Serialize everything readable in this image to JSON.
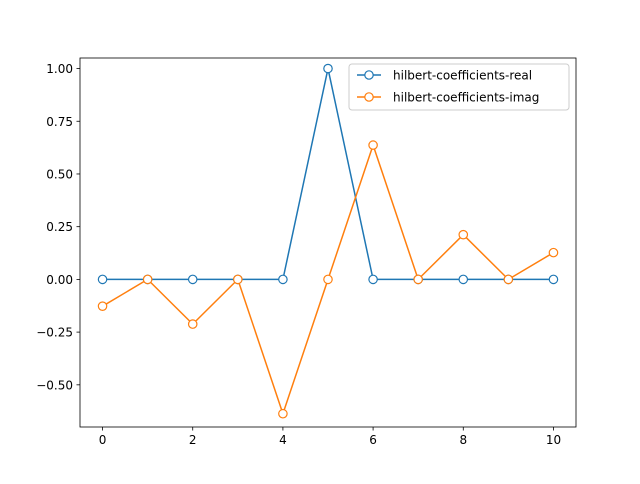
{
  "chart_data": {
    "type": "line",
    "x": [
      0,
      1,
      2,
      3,
      4,
      5,
      6,
      7,
      8,
      9,
      10
    ],
    "series": [
      {
        "name": "hilbert-coefficients-real",
        "color": "#1f77b4",
        "values": [
          0,
          0,
          0,
          0,
          0,
          1.0,
          0,
          0,
          0,
          0,
          0
        ]
      },
      {
        "name": "hilbert-coefficients-imag",
        "color": "#ff7f0e",
        "values": [
          -0.127,
          0,
          -0.212,
          0,
          -0.637,
          0,
          0.637,
          0,
          0.212,
          0,
          0.127
        ]
      }
    ],
    "xlim": [
      -0.5,
      10.5
    ],
    "ylim": [
      -0.7,
      1.05
    ],
    "xticks": [
      0,
      2,
      4,
      6,
      8,
      10
    ],
    "xtick_labels": [
      "0",
      "2",
      "4",
      "6",
      "8",
      "10"
    ],
    "yticks": [
      -0.5,
      -0.25,
      0,
      0.25,
      0.5,
      0.75,
      1.0
    ],
    "ytick_labels": [
      "−0.50",
      "−0.25",
      "0.00",
      "0.25",
      "0.50",
      "0.75",
      "1.00"
    ],
    "marker": "hollow-circle",
    "grid": false,
    "legend_position": "top-right",
    "title": "",
    "xlabel": "",
    "ylabel": ""
  }
}
